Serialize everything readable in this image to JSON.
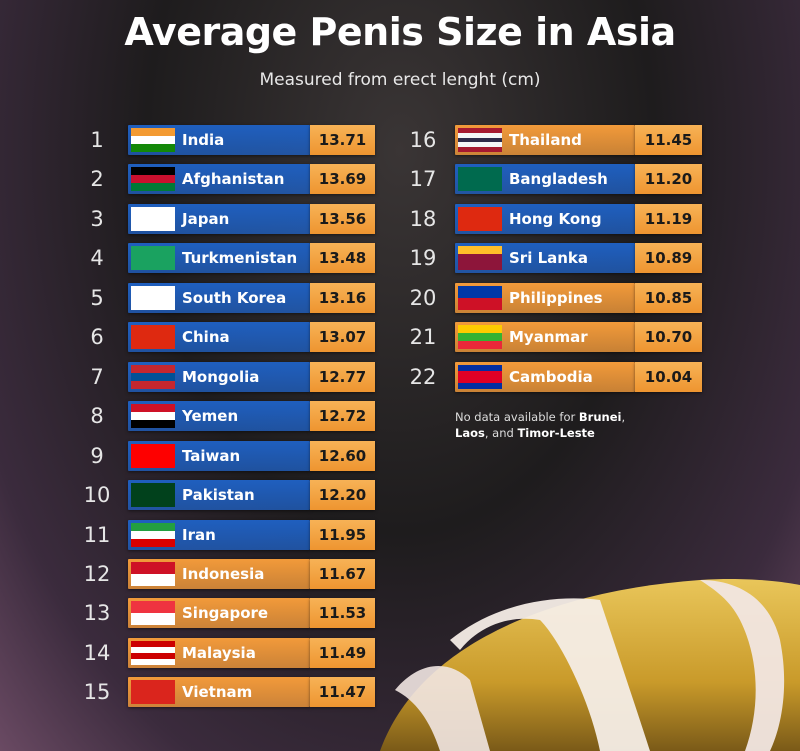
{
  "header": {
    "title": "Average Penis Size in Asia",
    "subtitle": "Measured from erect lenght (cm)"
  },
  "table": {
    "rows": [
      {
        "rank": 1,
        "country": "India",
        "value": "13.71",
        "color": "#1f5fbf"
      },
      {
        "rank": 2,
        "country": "Afghanistan",
        "value": "13.69",
        "color": "#1f5fbf"
      },
      {
        "rank": 3,
        "country": "Japan",
        "value": "13.56",
        "color": "#1f5fbf"
      },
      {
        "rank": 4,
        "country": "Turkmenistan",
        "value": "13.48",
        "color": "#1f5fbf"
      },
      {
        "rank": 5,
        "country": "South Korea",
        "value": "13.16",
        "color": "#1f5fbf"
      },
      {
        "rank": 6,
        "country": "China",
        "value": "13.07",
        "color": "#1f5fbf"
      },
      {
        "rank": 7,
        "country": "Mongolia",
        "value": "12.77",
        "color": "#1f5fbf"
      },
      {
        "rank": 8,
        "country": "Yemen",
        "value": "12.72",
        "color": "#1f5fbf"
      },
      {
        "rank": 9,
        "country": "Taiwan",
        "value": "12.60",
        "color": "#1f5fbf"
      },
      {
        "rank": 10,
        "country": "Pakistan",
        "value": "12.20",
        "color": "#1f5fbf"
      },
      {
        "rank": 11,
        "country": "Iran",
        "value": "11.95",
        "color": "#1f5fbf"
      },
      {
        "rank": 12,
        "country": "Indonesia",
        "value": "11.67",
        "color": "#f29a3a"
      },
      {
        "rank": 13,
        "country": "Singapore",
        "value": "11.53",
        "color": "#f29a3a"
      },
      {
        "rank": 14,
        "country": "Malaysia",
        "value": "11.49",
        "color": "#f29a3a"
      },
      {
        "rank": 15,
        "country": "Vietnam",
        "value": "11.47",
        "color": "#f29a3a"
      },
      {
        "rank": 16,
        "country": "Thailand",
        "value": "11.45",
        "color": "#f29a3a"
      },
      {
        "rank": 17,
        "country": "Bangladesh",
        "value": "11.20",
        "color": "#1f5fbf"
      },
      {
        "rank": 18,
        "country": "Hong Kong",
        "value": "11.19",
        "color": "#1f5fbf"
      },
      {
        "rank": 19,
        "country": "Sri Lanka",
        "value": "10.89",
        "color": "#1f5fbf"
      },
      {
        "rank": 20,
        "country": "Philippines",
        "value": "10.85",
        "color": "#f29a3a"
      },
      {
        "rank": 21,
        "country": "Myanmar",
        "value": "10.70",
        "color": "#f29a3a"
      },
      {
        "rank": 22,
        "country": "Cambodia",
        "value": "10.04",
        "color": "#f29a3a"
      }
    ]
  },
  "note": [
    {
      "text": "No data available for ",
      "bold": false
    },
    {
      "text": "Brunei",
      "bold": true
    },
    {
      "text": ", ",
      "bold": false
    },
    {
      "text": "Laos",
      "bold": true
    },
    {
      "text": ", and ",
      "bold": false
    },
    {
      "text": "Timor-Leste",
      "bold": true
    }
  ]
}
